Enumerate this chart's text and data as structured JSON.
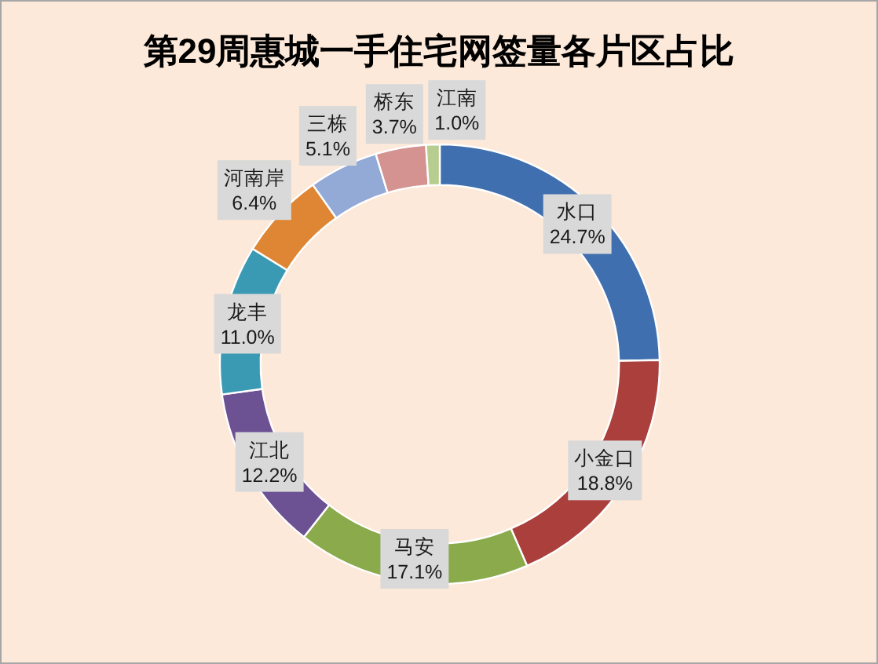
{
  "chart_data": {
    "type": "donut",
    "title": "第29周惠城一手住宅网签量各片区占比",
    "categories": [
      "水口",
      "小金口",
      "马安",
      "江北",
      "龙丰",
      "河南岸",
      "三栋",
      "桥东",
      "江南"
    ],
    "values": [
      24.7,
      18.8,
      17.1,
      12.2,
      11.0,
      6.4,
      5.1,
      3.7,
      1.0
    ],
    "value_labels": [
      "24.7%",
      "18.8%",
      "17.1%",
      "12.2%",
      "11.0%",
      "6.4%",
      "5.1%",
      "3.7%",
      "1.0%"
    ],
    "colors": [
      "#3f6fae",
      "#aa3f3c",
      "#8aaa4b",
      "#6c5293",
      "#3a9ab3",
      "#de8633",
      "#93a9d6",
      "#d49291",
      "#b6cd8f"
    ]
  }
}
